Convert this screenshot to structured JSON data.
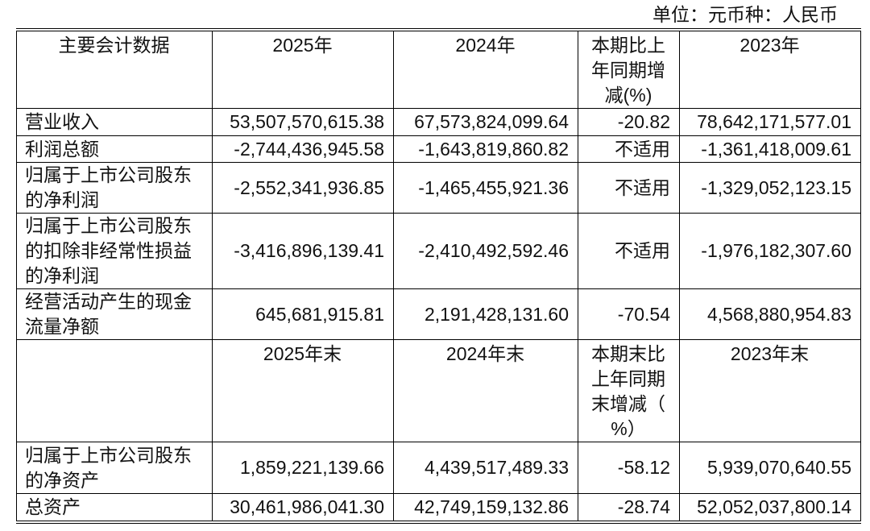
{
  "unit_note": "单位：元币种：人民币",
  "header_annual": {
    "label": "主要会计数据",
    "col_2025": "2025年",
    "col_2024": "2024年",
    "col_change": [
      "本期比上",
      "年同期增",
      "减(%)"
    ],
    "col_2023": "2023年"
  },
  "rows_annual": [
    {
      "label": [
        "营业收入"
      ],
      "v2025": "53,507,570,615.38",
      "v2024": "67,573,824,099.64",
      "change": "-20.82",
      "v2023": "78,642,171,577.01"
    },
    {
      "label": [
        "利润总额"
      ],
      "v2025": "-2,744,436,945.58",
      "v2024": "-1,643,819,860.82",
      "change": "不适用",
      "v2023": "-1,361,418,009.61"
    },
    {
      "label": [
        "归属于上市公司股东",
        "的净利润"
      ],
      "v2025": "-2,552,341,936.85",
      "v2024": "-1,465,455,921.36",
      "change": "不适用",
      "v2023": "-1,329,052,123.15"
    },
    {
      "label": [
        "归属于上市公司股东",
        "的扣除非经常性损益",
        "的净利润"
      ],
      "v2025": "-3,416,896,139.41",
      "v2024": "-2,410,492,592.46",
      "change": "不适用",
      "v2023": "-1,976,182,307.60"
    },
    {
      "label": [
        "经营活动产生的现金",
        "流量净额"
      ],
      "v2025": "645,681,915.81",
      "v2024": "2,191,428,131.60",
      "change": "-70.54",
      "v2023": "4,568,880,954.83"
    }
  ],
  "header_year_end": {
    "col_2025": "2025年末",
    "col_2024": "2024年末",
    "col_change": [
      "本期末比",
      "上年同期",
      "末增减（",
      "%）"
    ],
    "col_2023": "2023年末"
  },
  "rows_year_end": [
    {
      "label": [
        "归属于上市公司股东",
        "的净资产"
      ],
      "v2025": "1,859,221,139.66",
      "v2024": "4,439,517,489.33",
      "change": "-58.12",
      "v2023": "5,939,070,640.55"
    },
    {
      "label": [
        "总资产"
      ],
      "v2025": "30,461,986,041.30",
      "v2024": "42,749,159,132.86",
      "change": "-28.74",
      "v2023": "52,052,037,800.14"
    }
  ]
}
